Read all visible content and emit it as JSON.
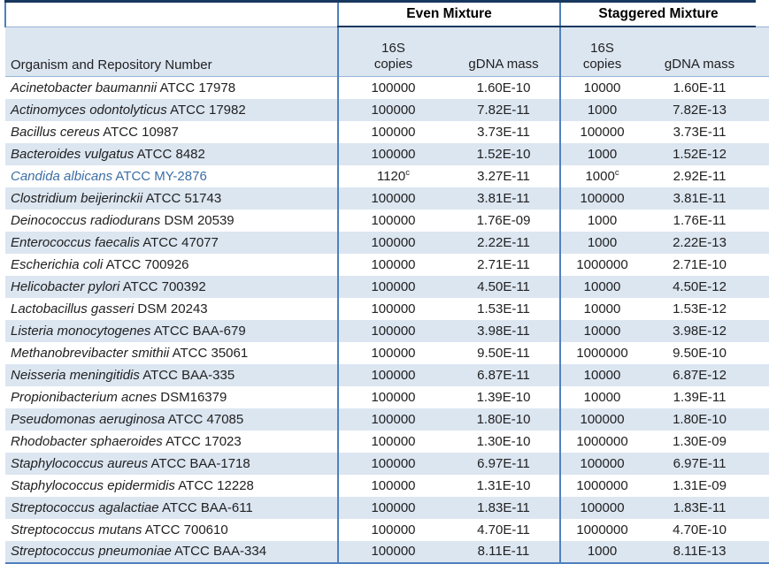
{
  "colors": {
    "row_shade": "#DCE6F1",
    "border_dark": "#17375E",
    "border_blue": "#4F81BD",
    "border_light": "#95B3D7",
    "text": "#212121",
    "highlight_text": "#3C6EA5"
  },
  "table": {
    "organism_header": "Organism and Repository Number",
    "column_groups": [
      {
        "label": "Even Mixture"
      },
      {
        "label": "Staggered Mixture"
      }
    ],
    "subheader": {
      "copies_top": "16S",
      "copies_bottom": "copies",
      "gdna": "gDNA mass"
    },
    "rows": [
      {
        "name": "Acinetobacter baumannii",
        "repo": "ATCC 17978",
        "even_copies": "100000",
        "even_copies_sup": "",
        "even_gdna": "1.60E-10",
        "stag_copies": "10000",
        "stag_copies_sup": "",
        "stag_gdna": "1.60E-11",
        "highlight": false
      },
      {
        "name": "Actinomyces odontolyticus",
        "repo": "ATCC 17982",
        "even_copies": "100000",
        "even_copies_sup": "",
        "even_gdna": "7.82E-11",
        "stag_copies": "1000",
        "stag_copies_sup": "",
        "stag_gdna": "7.82E-13",
        "highlight": false
      },
      {
        "name": "Bacillus cereus",
        "repo": "ATCC 10987",
        "even_copies": "100000",
        "even_copies_sup": "",
        "even_gdna": "3.73E-11",
        "stag_copies": "100000",
        "stag_copies_sup": "",
        "stag_gdna": "3.73E-11",
        "highlight": false
      },
      {
        "name": "Bacteroides vulgatus",
        "repo": "ATCC 8482",
        "even_copies": "100000",
        "even_copies_sup": "",
        "even_gdna": "1.52E-10",
        "stag_copies": "1000",
        "stag_copies_sup": "",
        "stag_gdna": "1.52E-12",
        "highlight": false
      },
      {
        "name": "Candida albicans",
        "repo": "ATCC MY-2876",
        "even_copies": "1120",
        "even_copies_sup": "c",
        "even_gdna": "3.27E-11",
        "stag_copies": "1000",
        "stag_copies_sup": "c",
        "stag_gdna": "2.92E-11",
        "highlight": true
      },
      {
        "name": "Clostridium beijerinckii",
        "repo": "ATCC 51743",
        "even_copies": "100000",
        "even_copies_sup": "",
        "even_gdna": "3.81E-11",
        "stag_copies": "100000",
        "stag_copies_sup": "",
        "stag_gdna": "3.81E-11",
        "highlight": false
      },
      {
        "name": "Deinococcus radiodurans",
        "repo": "DSM 20539",
        "even_copies": "100000",
        "even_copies_sup": "",
        "even_gdna": "1.76E-09",
        "stag_copies": "1000",
        "stag_copies_sup": "",
        "stag_gdna": "1.76E-11",
        "highlight": false
      },
      {
        "name": "Enterococcus faecalis",
        "repo": "ATCC 47077",
        "even_copies": "100000",
        "even_copies_sup": "",
        "even_gdna": "2.22E-11",
        "stag_copies": "1000",
        "stag_copies_sup": "",
        "stag_gdna": "2.22E-13",
        "highlight": false
      },
      {
        "name": "Escherichia coli",
        "repo": "ATCC 700926",
        "even_copies": "100000",
        "even_copies_sup": "",
        "even_gdna": "2.71E-11",
        "stag_copies": "1000000",
        "stag_copies_sup": "",
        "stag_gdna": "2.71E-10",
        "highlight": false
      },
      {
        "name": "Helicobacter pylori",
        "repo": "ATCC 700392",
        "even_copies": "100000",
        "even_copies_sup": "",
        "even_gdna": "4.50E-11",
        "stag_copies": "10000",
        "stag_copies_sup": "",
        "stag_gdna": "4.50E-12",
        "highlight": false
      },
      {
        "name": "Lactobacillus gasseri",
        "repo": "DSM 20243",
        "even_copies": "100000",
        "even_copies_sup": "",
        "even_gdna": "1.53E-11",
        "stag_copies": "10000",
        "stag_copies_sup": "",
        "stag_gdna": "1.53E-12",
        "highlight": false
      },
      {
        "name": "Listeria monocytogenes",
        "repo": "ATCC BAA-679",
        "even_copies": "100000",
        "even_copies_sup": "",
        "even_gdna": "3.98E-11",
        "stag_copies": "10000",
        "stag_copies_sup": "",
        "stag_gdna": "3.98E-12",
        "highlight": false
      },
      {
        "name": "Methanobrevibacter smithii",
        "repo": "ATCC 35061",
        "even_copies": "100000",
        "even_copies_sup": "",
        "even_gdna": "9.50E-11",
        "stag_copies": "1000000",
        "stag_copies_sup": "",
        "stag_gdna": "9.50E-10",
        "highlight": false
      },
      {
        "name": "Neisseria meningitidis",
        "repo": "ATCC BAA-335",
        "even_copies": "100000",
        "even_copies_sup": "",
        "even_gdna": "6.87E-11",
        "stag_copies": "10000",
        "stag_copies_sup": "",
        "stag_gdna": "6.87E-12",
        "highlight": false
      },
      {
        "name": "Propionibacterium acnes",
        "repo": "DSM16379",
        "even_copies": "100000",
        "even_copies_sup": "",
        "even_gdna": "1.39E-10",
        "stag_copies": "10000",
        "stag_copies_sup": "",
        "stag_gdna": "1.39E-11",
        "highlight": false
      },
      {
        "name": "Pseudomonas aeruginosa",
        "repo": "ATCC 47085",
        "even_copies": "100000",
        "even_copies_sup": "",
        "even_gdna": "1.80E-10",
        "stag_copies": "100000",
        "stag_copies_sup": "",
        "stag_gdna": "1.80E-10",
        "highlight": false
      },
      {
        "name": "Rhodobacter sphaeroides",
        "repo": "ATCC 17023",
        "even_copies": "100000",
        "even_copies_sup": "",
        "even_gdna": "1.30E-10",
        "stag_copies": "1000000",
        "stag_copies_sup": "",
        "stag_gdna": "1.30E-09",
        "highlight": false
      },
      {
        "name": "Staphylococcus aureus",
        "repo": "ATCC BAA-1718",
        "even_copies": "100000",
        "even_copies_sup": "",
        "even_gdna": "6.97E-11",
        "stag_copies": "100000",
        "stag_copies_sup": "",
        "stag_gdna": "6.97E-11",
        "highlight": false
      },
      {
        "name": "Staphylococcus epidermidis",
        "repo": "ATCC 12228",
        "even_copies": "100000",
        "even_copies_sup": "",
        "even_gdna": "1.31E-10",
        "stag_copies": "1000000",
        "stag_copies_sup": "",
        "stag_gdna": "1.31E-09",
        "highlight": false
      },
      {
        "name": "Streptococcus agalactiae",
        "repo": "ATCC BAA-611",
        "even_copies": "100000",
        "even_copies_sup": "",
        "even_gdna": "1.83E-11",
        "stag_copies": "100000",
        "stag_copies_sup": "",
        "stag_gdna": "1.83E-11",
        "highlight": false
      },
      {
        "name": "Streptococcus mutans",
        "repo": "ATCC 700610",
        "even_copies": "100000",
        "even_copies_sup": "",
        "even_gdna": "4.70E-11",
        "stag_copies": "1000000",
        "stag_copies_sup": "",
        "stag_gdna": "4.70E-10",
        "highlight": false
      },
      {
        "name": "Streptococcus pneumoniae",
        "repo": "ATCC BAA-334",
        "even_copies": "100000",
        "even_copies_sup": "",
        "even_gdna": "8.11E-11",
        "stag_copies": "1000",
        "stag_copies_sup": "",
        "stag_gdna": "8.11E-13",
        "highlight": false
      }
    ]
  }
}
